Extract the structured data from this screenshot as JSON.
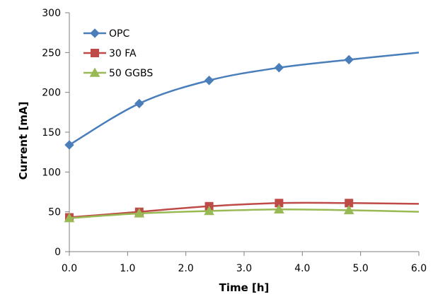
{
  "chart_data": {
    "type": "line",
    "title": "",
    "xlabel": "Time [h]",
    "ylabel": "Current [mA]",
    "xlim": [
      0,
      6
    ],
    "ylim": [
      0,
      300
    ],
    "x_ticks": [
      "0.0",
      "1.0",
      "2.0",
      "3.0",
      "4.0",
      "5.0",
      "6.0"
    ],
    "y_ticks": [
      "0",
      "50",
      "100",
      "150",
      "200",
      "250",
      "300"
    ],
    "grid": false,
    "legend_position": "top-left",
    "series": [
      {
        "name": "OPC",
        "color": "#4a7ebb",
        "marker": "diamond",
        "x": [
          0,
          1.2,
          2.4,
          3.6,
          4.8
        ],
        "y": [
          134,
          186,
          215,
          231,
          241
        ],
        "line_x": [
          0,
          1.2,
          2.4,
          3.6,
          4.8,
          6.0
        ],
        "line_y": [
          134,
          186,
          215,
          231,
          241,
          250
        ]
      },
      {
        "name": "30 FA",
        "color": "#be4b48",
        "marker": "square",
        "x": [
          0,
          1.2,
          2.4,
          3.6,
          4.8
        ],
        "y": [
          43,
          50,
          57,
          61,
          61
        ],
        "line_x": [
          0,
          1.2,
          2.4,
          3.6,
          4.8,
          6.0
        ],
        "line_y": [
          43,
          50,
          57,
          61,
          61,
          60
        ]
      },
      {
        "name": "50 GGBS",
        "color": "#98b954",
        "marker": "triangle",
        "x": [
          0,
          1.2,
          2.4,
          3.6,
          4.8
        ],
        "y": [
          42,
          48,
          51,
          53,
          52
        ],
        "line_x": [
          0,
          1.2,
          2.4,
          3.6,
          4.8,
          6.0
        ],
        "line_y": [
          42,
          48,
          51,
          53,
          52,
          50
        ]
      }
    ]
  }
}
